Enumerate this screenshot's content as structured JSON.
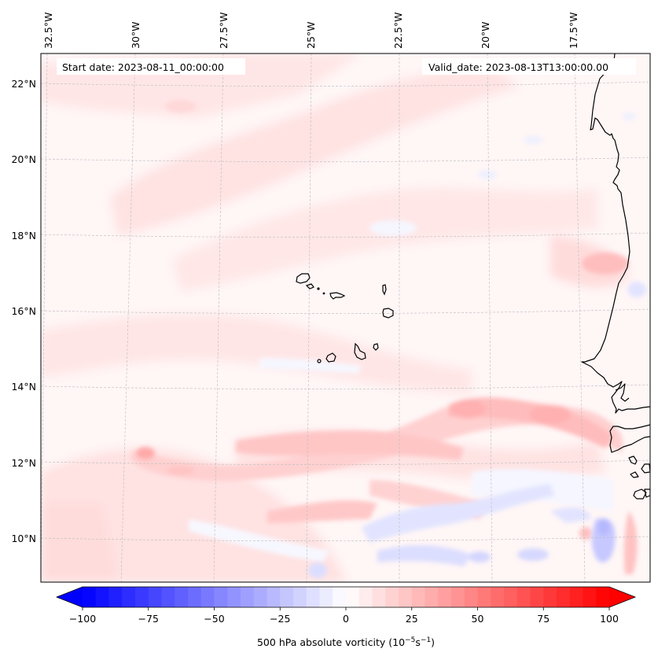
{
  "map": {
    "start_date_label": "Start date: 2023-08-11_00:00:00",
    "valid_date_label": "Valid_date: 2023-08-13T13:00:00.00",
    "lon_ticks": [
      "32.5°W",
      "30°W",
      "27.5°W",
      "25°W",
      "22.5°W",
      "20°W",
      "17.5°W"
    ],
    "lat_ticks": [
      "22°N",
      "20°N",
      "18°N",
      "16°N",
      "14°N",
      "12°N",
      "10°N"
    ],
    "lon_values": [
      -32.5,
      -30,
      -27.5,
      -25,
      -22.5,
      -20,
      -17.5
    ],
    "lat_values": [
      22,
      20,
      18,
      16,
      14,
      12,
      10
    ],
    "extent": {
      "lon_min": -33.3,
      "lon_max": -15.7,
      "lat_min": 8.9,
      "lat_max": 22.8
    },
    "field": "500 hPa absolute vorticity",
    "features": [
      {
        "name": "island-cape-verde-santo-antao"
      },
      {
        "name": "island-cape-verde-sao-vicente"
      },
      {
        "name": "island-cape-verde-sao-nicolau"
      },
      {
        "name": "island-cape-verde-sal"
      },
      {
        "name": "island-cape-verde-boa-vista"
      },
      {
        "name": "island-cape-verde-santiago"
      },
      {
        "name": "island-cape-verde-maio"
      },
      {
        "name": "island-cape-verde-fogo"
      },
      {
        "name": "island-cape-verde-brava"
      }
    ]
  },
  "colorbar": {
    "label_main": "500 hPa absolute vorticity (10",
    "label_exp1": "−5",
    "label_mid": "s",
    "label_exp2": "−1",
    "label_end": ")",
    "ticks": [
      "−100",
      "−75",
      "−50",
      "−25",
      "0",
      "25",
      "50",
      "75",
      "100"
    ],
    "tick_values": [
      -100,
      -75,
      -50,
      -25,
      0,
      25,
      50,
      75,
      100
    ],
    "vmin": -100,
    "vmax": 100,
    "levels_step": 5,
    "extend": "both",
    "cmap": "bwr",
    "color_min": "#0000ff",
    "color_mid": "#ffffff",
    "color_max": "#ff0000"
  }
}
